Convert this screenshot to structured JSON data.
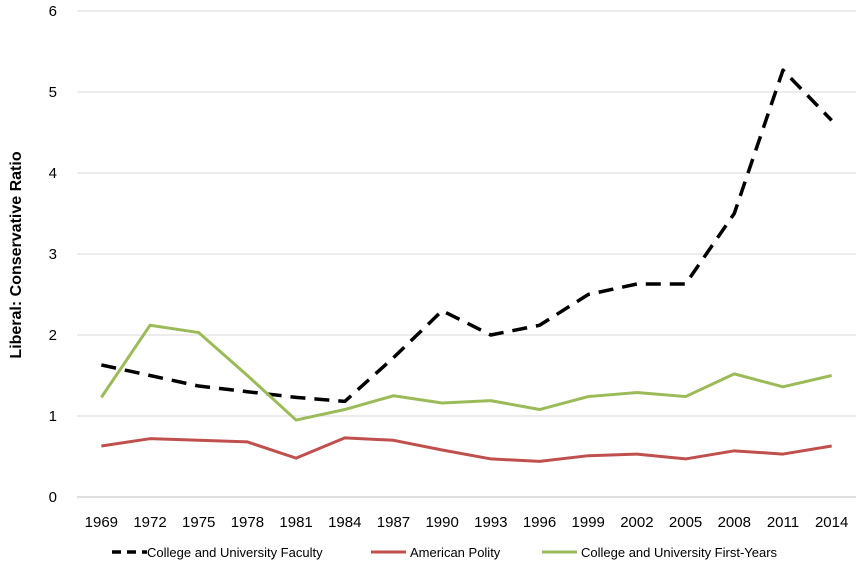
{
  "chart_data": {
    "type": "line",
    "title": "",
    "xlabel": "",
    "ylabel": "Liberal: Conservative Ratio",
    "ylim": [
      0,
      6
    ],
    "yticks": [
      0,
      1,
      2,
      3,
      4,
      5,
      6
    ],
    "grid": "horizontal",
    "legend_position": "bottom",
    "categories": [
      "1969",
      "1972",
      "1975",
      "1978",
      "1981",
      "1984",
      "1987",
      "1990",
      "1993",
      "1996",
      "1999",
      "2002",
      "2005",
      "2008",
      "2011",
      "2014"
    ],
    "series": [
      {
        "name": "College and University Faculty",
        "color": "#000000",
        "style": "dashed",
        "values": [
          1.63,
          1.5,
          1.37,
          1.3,
          1.23,
          1.18,
          1.72,
          2.3,
          2.0,
          2.12,
          2.5,
          2.63,
          2.63,
          3.5,
          5.27,
          4.65
        ]
      },
      {
        "name": "American Polity",
        "color": "#c0504d",
        "style": "solid",
        "values": [
          0.63,
          0.72,
          0.7,
          0.68,
          0.48,
          0.73,
          0.7,
          0.58,
          0.47,
          0.44,
          0.51,
          0.53,
          0.47,
          0.57,
          0.53,
          0.63
        ]
      },
      {
        "name": "College and University First-Years",
        "color": "#9bbb59",
        "style": "solid",
        "values": [
          1.23,
          2.12,
          2.03,
          1.5,
          0.95,
          1.08,
          1.25,
          1.16,
          1.19,
          1.08,
          1.24,
          1.29,
          1.24,
          1.52,
          1.36,
          1.5
        ]
      }
    ]
  }
}
